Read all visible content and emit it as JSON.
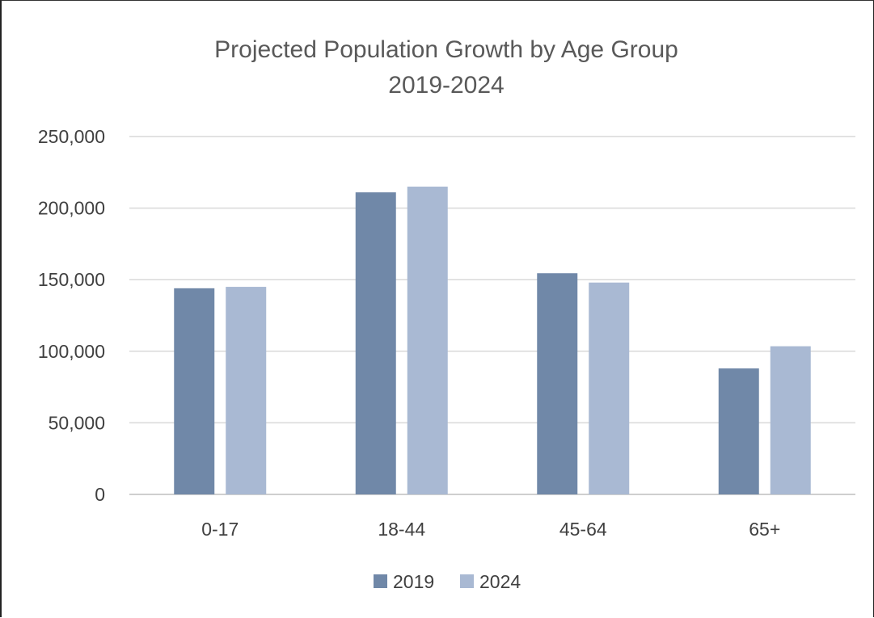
{
  "chart_data": {
    "type": "bar",
    "title": "Projected Population Growth by Age Group",
    "subtitle": "2019-2024",
    "categories": [
      "0-17",
      "18-44",
      "45-64",
      "65+"
    ],
    "series": [
      {
        "name": "2019",
        "color": "#7088a8",
        "values": [
          144000,
          211000,
          154500,
          88000
        ]
      },
      {
        "name": "2024",
        "color": "#a9b9d3",
        "values": [
          145000,
          215000,
          148000,
          103500
        ]
      }
    ],
    "ylim": [
      0,
      250000
    ],
    "yticks": [
      0,
      50000,
      100000,
      150000,
      200000,
      250000
    ],
    "ytick_labels": [
      "0",
      "50,000",
      "100,000",
      "150,000",
      "200,000",
      "250,000"
    ],
    "grid": true,
    "legend_position": "bottom"
  }
}
